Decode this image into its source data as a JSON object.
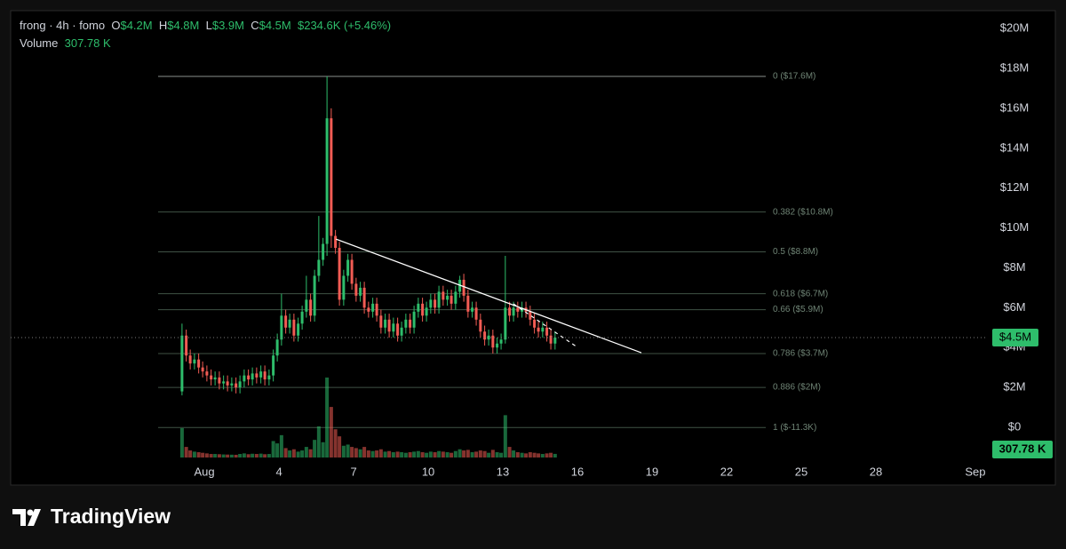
{
  "chart_data": {
    "type": "candlestick",
    "legend": {
      "symbol": "frong · 4h · fomo",
      "fields": [
        {
          "key": "O",
          "value": "$4.2M"
        },
        {
          "key": "H",
          "value": "$4.8M"
        },
        {
          "key": "L",
          "value": "$3.9M"
        },
        {
          "key": "C",
          "value": "$4.5M"
        }
      ],
      "change": "$234.6K (+5.46%)",
      "volume_label": "Volume",
      "volume": "307.78 K"
    },
    "up_color": "#2ebd6b",
    "down_color": "#f25c54",
    "grid": false,
    "xlim": [
      -6.79,
      32.43
    ],
    "xticks": [
      {
        "value": 1,
        "label": "Aug"
      },
      4,
      7,
      10,
      13,
      16,
      19,
      22,
      25,
      28,
      {
        "value": 32,
        "label": "Sep"
      }
    ],
    "ylim": [
      -1.65,
      20.9
    ],
    "yticks": [
      {
        "value": 0,
        "label": "$0"
      },
      {
        "value": 2,
        "label": "$2M"
      },
      {
        "value": 4,
        "label": "$4M"
      },
      {
        "value": 6,
        "label": "$6M"
      },
      {
        "value": 8,
        "label": "$8M"
      },
      {
        "value": 10,
        "label": "$10M"
      },
      {
        "value": 12,
        "label": "$12M"
      },
      {
        "value": 14,
        "label": "$14M"
      },
      {
        "value": 16,
        "label": "$16M"
      },
      {
        "value": 18,
        "label": "$18M"
      },
      {
        "value": 20,
        "label": "$20M"
      }
    ],
    "x": [
      0.1,
      0.27,
      0.43,
      0.6,
      0.77,
      0.93,
      1.1,
      1.27,
      1.43,
      1.6,
      1.77,
      1.93,
      2.1,
      2.27,
      2.43,
      2.6,
      2.77,
      2.93,
      3.1,
      3.27,
      3.43,
      3.6,
      3.77,
      3.93,
      4.1,
      4.27,
      4.43,
      4.6,
      4.77,
      4.93,
      5.1,
      5.27,
      5.43,
      5.6,
      5.77,
      5.93,
      6.1,
      6.27,
      6.43,
      6.6,
      6.77,
      6.93,
      7.1,
      7.27,
      7.43,
      7.6,
      7.77,
      7.93,
      8.1,
      8.27,
      8.43,
      8.6,
      8.77,
      8.93,
      9.1,
      9.27,
      9.43,
      9.6,
      9.77,
      9.93,
      10.1,
      10.27,
      10.43,
      10.6,
      10.77,
      10.93,
      11.1,
      11.27,
      11.43,
      11.6,
      11.77,
      11.93,
      12.1,
      12.27,
      12.43,
      12.6,
      12.77,
      12.93,
      13.1,
      13.27,
      13.43,
      13.6,
      13.77,
      13.93,
      14.1,
      14.27,
      14.43,
      14.6,
      14.77,
      14.93,
      15.1
    ],
    "ohlc": [
      [
        1.8,
        5.2,
        1.6,
        4.6
      ],
      [
        4.6,
        4.9,
        3.3,
        3.6
      ],
      [
        3.6,
        3.9,
        2.9,
        3.2
      ],
      [
        3.2,
        3.7,
        2.9,
        3.4
      ],
      [
        3.4,
        3.7,
        2.7,
        3.0
      ],
      [
        3.0,
        3.3,
        2.5,
        2.8
      ],
      [
        2.8,
        3.1,
        2.3,
        2.6
      ],
      [
        2.6,
        2.9,
        2.1,
        2.4
      ],
      [
        2.4,
        2.8,
        2.1,
        2.5
      ],
      [
        2.5,
        2.8,
        1.9,
        2.2
      ],
      [
        2.2,
        2.6,
        1.9,
        2.3
      ],
      [
        2.3,
        2.6,
        1.8,
        2.1
      ],
      [
        2.1,
        2.5,
        1.8,
        2.2
      ],
      [
        2.2,
        2.5,
        1.7,
        2.0
      ],
      [
        2.0,
        2.6,
        1.7,
        2.3
      ],
      [
        2.3,
        2.9,
        2.0,
        2.6
      ],
      [
        2.6,
        2.9,
        2.1,
        2.4
      ],
      [
        2.4,
        3.0,
        2.1,
        2.7
      ],
      [
        2.7,
        3.0,
        2.2,
        2.5
      ],
      [
        2.5,
        3.1,
        2.2,
        2.8
      ],
      [
        2.8,
        3.1,
        2.1,
        2.4
      ],
      [
        2.4,
        2.9,
        2.1,
        2.6
      ],
      [
        2.6,
        3.9,
        2.3,
        3.6
      ],
      [
        3.6,
        4.7,
        3.3,
        4.4
      ],
      [
        4.4,
        6.7,
        4.1,
        5.6
      ],
      [
        5.6,
        5.9,
        4.7,
        5.0
      ],
      [
        5.0,
        5.7,
        4.7,
        5.4
      ],
      [
        5.4,
        5.7,
        4.3,
        4.6
      ],
      [
        4.6,
        5.5,
        4.3,
        5.2
      ],
      [
        5.2,
        6.1,
        4.9,
        5.8
      ],
      [
        5.8,
        7.6,
        5.5,
        6.4
      ],
      [
        6.4,
        6.7,
        5.3,
        5.6
      ],
      [
        5.6,
        7.9,
        5.3,
        7.6
      ],
      [
        7.6,
        10.6,
        7.3,
        8.4
      ],
      [
        8.4,
        9.5,
        8.1,
        9.2
      ],
      [
        9.2,
        17.6,
        8.6,
        15.5
      ],
      [
        15.5,
        16.0,
        9.0,
        9.6
      ],
      [
        9.6,
        9.9,
        8.7,
        9.0
      ],
      [
        9.0,
        9.3,
        6.1,
        6.4
      ],
      [
        6.4,
        7.9,
        6.1,
        7.6
      ],
      [
        7.6,
        8.7,
        7.3,
        8.4
      ],
      [
        8.4,
        8.7,
        6.9,
        7.2
      ],
      [
        7.2,
        7.5,
        6.3,
        6.6
      ],
      [
        6.6,
        7.3,
        6.3,
        7.0
      ],
      [
        7.0,
        7.3,
        5.7,
        6.0
      ],
      [
        6.0,
        6.3,
        5.5,
        5.8
      ],
      [
        5.8,
        6.5,
        5.5,
        6.2
      ],
      [
        6.2,
        6.5,
        5.3,
        5.6
      ],
      [
        5.6,
        5.9,
        4.7,
        5.0
      ],
      [
        5.0,
        5.7,
        4.7,
        5.4
      ],
      [
        5.4,
        5.7,
        4.5,
        4.8
      ],
      [
        4.8,
        5.5,
        4.5,
        5.2
      ],
      [
        5.2,
        5.5,
        4.3,
        4.6
      ],
      [
        4.6,
        5.3,
        4.3,
        5.0
      ],
      [
        5.0,
        5.7,
        4.7,
        5.4
      ],
      [
        5.4,
        5.7,
        4.7,
        5.0
      ],
      [
        5.0,
        6.1,
        4.7,
        5.8
      ],
      [
        5.8,
        6.5,
        5.5,
        6.2
      ],
      [
        6.2,
        6.5,
        5.3,
        5.6
      ],
      [
        5.6,
        6.3,
        5.3,
        6.0
      ],
      [
        6.0,
        6.7,
        5.7,
        6.4
      ],
      [
        6.4,
        6.7,
        5.7,
        6.0
      ],
      [
        6.0,
        7.1,
        5.7,
        6.8
      ],
      [
        6.8,
        7.1,
        6.1,
        6.4
      ],
      [
        6.4,
        6.9,
        6.1,
        6.6
      ],
      [
        6.6,
        6.9,
        5.9,
        6.2
      ],
      [
        6.2,
        7.1,
        5.9,
        6.8
      ],
      [
        6.8,
        7.6,
        6.5,
        7.4
      ],
      [
        7.4,
        7.7,
        6.3,
        6.6
      ],
      [
        6.6,
        6.9,
        5.5,
        5.8
      ],
      [
        5.8,
        6.3,
        5.5,
        6.0
      ],
      [
        6.0,
        6.3,
        5.1,
        5.4
      ],
      [
        5.4,
        5.7,
        4.5,
        4.8
      ],
      [
        4.8,
        5.1,
        4.1,
        4.4
      ],
      [
        4.4,
        4.9,
        4.1,
        4.6
      ],
      [
        4.6,
        4.9,
        3.7,
        4.0
      ],
      [
        4.0,
        4.5,
        3.7,
        4.2
      ],
      [
        4.2,
        4.7,
        3.9,
        4.4
      ],
      [
        4.4,
        8.6,
        4.2,
        6.0
      ],
      [
        6.0,
        6.3,
        5.3,
        5.6
      ],
      [
        5.6,
        6.3,
        5.3,
        6.0
      ],
      [
        6.0,
        6.3,
        5.5,
        5.8
      ],
      [
        5.8,
        6.3,
        5.5,
        6.0
      ],
      [
        6.0,
        6.3,
        5.5,
        5.8
      ],
      [
        5.8,
        6.1,
        5.1,
        5.4
      ],
      [
        5.4,
        5.7,
        4.7,
        5.0
      ],
      [
        5.0,
        5.3,
        4.5,
        4.8
      ],
      [
        4.8,
        5.3,
        4.5,
        5.0
      ],
      [
        5.0,
        5.3,
        4.3,
        4.6
      ],
      [
        4.6,
        4.9,
        3.9,
        4.2
      ],
      [
        4.2,
        4.8,
        3.9,
        4.5
      ]
    ],
    "volume": [
      2500,
      900,
      600,
      500,
      450,
      400,
      350,
      300,
      300,
      280,
      260,
      250,
      240,
      230,
      300,
      350,
      280,
      320,
      300,
      330,
      280,
      300,
      1400,
      1200,
      1900,
      800,
      600,
      700,
      500,
      600,
      900,
      700,
      1500,
      2650,
      1300,
      6800,
      4300,
      2400,
      1800,
      1000,
      1100,
      900,
      800,
      700,
      900,
      600,
      550,
      600,
      700,
      500,
      550,
      450,
      500,
      450,
      400,
      450,
      500,
      550,
      450,
      400,
      500,
      450,
      550,
      500,
      450,
      400,
      550,
      700,
      600,
      650,
      450,
      500,
      600,
      550,
      400,
      650,
      450,
      400,
      3600,
      900,
      600,
      450,
      400,
      350,
      450,
      400,
      350,
      300,
      350,
      400,
      307.78
    ],
    "fib_levels": [
      {
        "label": "0 ($17.6M)",
        "value": 17.6
      },
      {
        "label": "0.382 ($10.8M)",
        "value": 10.8
      },
      {
        "label": "0.5 ($8.8M)",
        "value": 8.8
      },
      {
        "label": "0.618 ($6.7M)",
        "value": 6.7
      },
      {
        "label": "0.66 ($5.9M)",
        "value": 5.9
      },
      {
        "label": "0.786 ($3.7M)",
        "value": 3.7
      },
      {
        "label": "0.886 ($2M)",
        "value": 2
      },
      {
        "label": "1 ($-11.3K)",
        "value": -0.0113
      }
    ],
    "trendlines": [
      {
        "style": "solid",
        "x": [
          6.29,
          18.57
        ],
        "y": [
          9.44,
          3.74
        ]
      },
      {
        "style": "dashed",
        "x": [
          13.43,
          16.0
        ],
        "y": [
          6.19,
          4.01
        ]
      }
    ],
    "last_price": {
      "value": 4.5,
      "label": "$4.5M"
    }
  },
  "footer": {
    "brand": "TradingView"
  }
}
